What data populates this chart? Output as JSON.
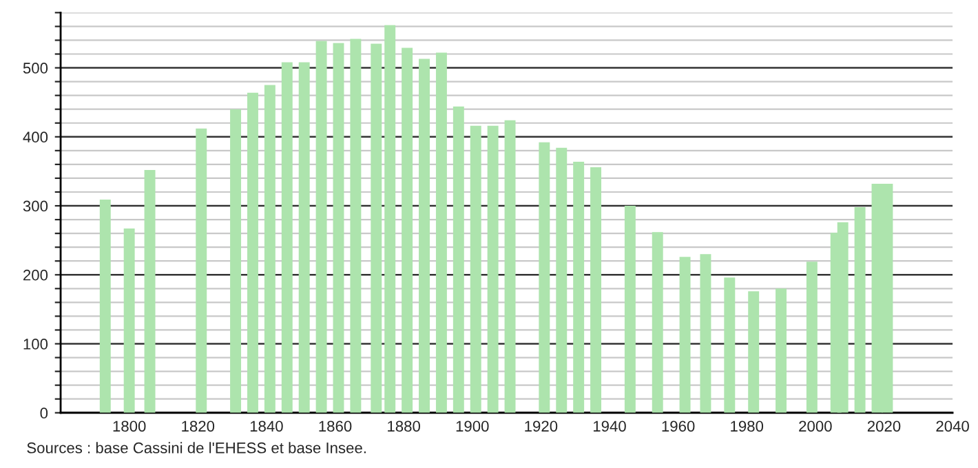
{
  "chart_data": {
    "type": "bar",
    "x": [
      1793,
      1800,
      1806,
      1821,
      1831,
      1836,
      1841,
      1846,
      1851,
      1856,
      1861,
      1866,
      1872,
      1876,
      1881,
      1886,
      1891,
      1896,
      1901,
      1906,
      1911,
      1921,
      1926,
      1931,
      1936,
      1946,
      1954,
      1962,
      1968,
      1975,
      1982,
      1990,
      1999,
      2006,
      2008,
      2013,
      2018,
      2021
    ],
    "values": [
      309,
      267,
      352,
      412,
      440,
      464,
      475,
      508,
      508,
      539,
      536,
      542,
      535,
      562,
      529,
      513,
      522,
      444,
      416,
      416,
      424,
      392,
      384,
      364,
      356,
      300,
      262,
      226,
      230,
      196,
      176,
      180,
      219,
      261,
      276,
      298,
      332,
      332
    ],
    "color": "#ade4ad",
    "xlim": [
      1780,
      2040
    ],
    "xticks": [
      1800,
      1820,
      1840,
      1860,
      1880,
      1900,
      1920,
      1940,
      1960,
      1980,
      2000,
      2020,
      2040
    ],
    "ylim": [
      0,
      580
    ],
    "yticks": [
      0,
      {
        "value": 20,
        "label": null
      },
      {
        "value": 40,
        "label": null
      },
      {
        "value": 60,
        "label": null
      },
      {
        "value": 80,
        "label": null
      },
      100,
      {
        "value": 120,
        "label": null
      },
      {
        "value": 140,
        "label": null
      },
      {
        "value": 160,
        "label": null
      },
      {
        "value": 180,
        "label": null
      },
      200,
      {
        "value": 220,
        "label": null
      },
      {
        "value": 240,
        "label": null
      },
      {
        "value": 260,
        "label": null
      },
      {
        "value": 280,
        "label": null
      },
      300,
      {
        "value": 320,
        "label": null
      },
      {
        "value": 340,
        "label": null
      },
      {
        "value": 360,
        "label": null
      },
      {
        "value": 380,
        "label": null
      },
      400,
      {
        "value": 420,
        "label": null
      },
      {
        "value": 440,
        "label": null
      },
      {
        "value": 460,
        "label": null
      },
      {
        "value": 480,
        "label": null
      },
      500,
      {
        "value": 520,
        "label": null
      },
      {
        "value": 540,
        "label": null
      },
      {
        "value": 560,
        "label": null
      },
      {
        "value": 580,
        "label": null
      }
    ],
    "grid": "y",
    "annotations": [
      "Sources : base Cassini de l'EHESS et base Insee."
    ]
  }
}
